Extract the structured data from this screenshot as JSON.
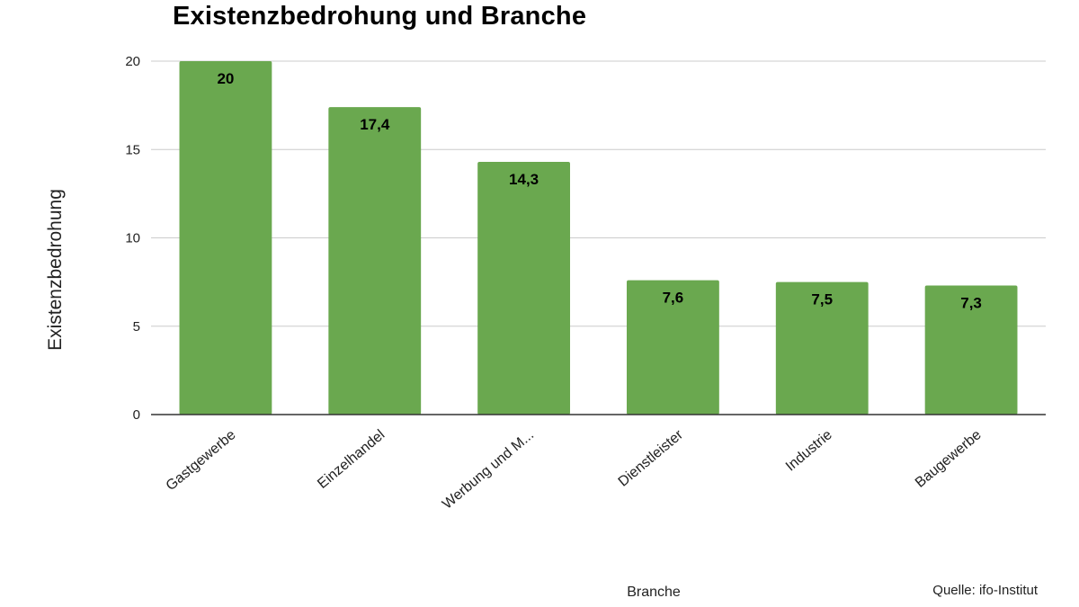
{
  "chart_data": {
    "type": "bar",
    "title": "Existenzbedrohung und Branche",
    "xlabel": "Branche",
    "ylabel": "Existenzbedrohung",
    "categories": [
      "Gastgewerbe",
      "Einzelhandel",
      "Werbung und M...",
      "Dienstleister",
      "Industrie",
      "Baugewerbe"
    ],
    "values": [
      20,
      17.4,
      14.3,
      7.6,
      7.5,
      7.3
    ],
    "data_labels": [
      "20",
      "17,4",
      "14,3",
      "7,6",
      "7,5",
      "7,3"
    ],
    "ylim": [
      0,
      20
    ],
    "yticks": [
      0,
      5,
      10,
      15,
      20
    ],
    "grid": true,
    "legend": "none",
    "bar_color": "#6aa84f"
  },
  "source": "Quelle: ifo-Institut"
}
